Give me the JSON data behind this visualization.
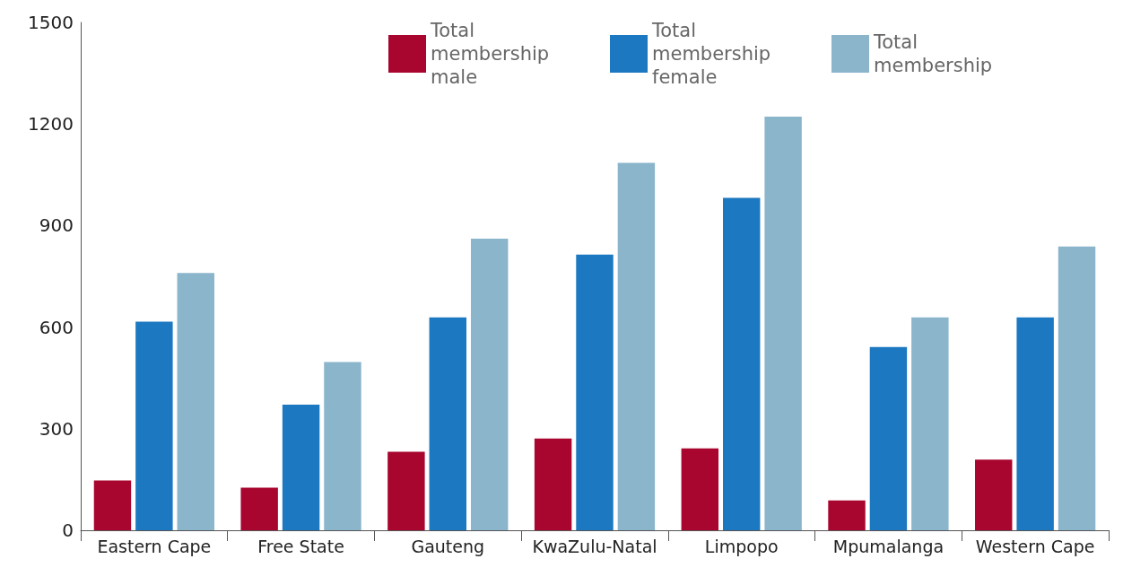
{
  "chart_data": {
    "type": "bar",
    "categories": [
      "Eastern Cape",
      "Free State",
      "Gauteng",
      "KwaZulu-Natal",
      "Limpopo",
      "Mpumalanga",
      "Western Cape"
    ],
    "series": [
      {
        "name": "Total membership male",
        "color": "#a8062f",
        "values": [
          147,
          126,
          232,
          271,
          242,
          88,
          209
        ]
      },
      {
        "name": "Total membership female",
        "color": "#1c78c0",
        "values": [
          616,
          371,
          629,
          814,
          982,
          541,
          629
        ]
      },
      {
        "name": "Total membership",
        "color": "#8ab5cb",
        "values": [
          760,
          497,
          861,
          1085,
          1222,
          629,
          838
        ]
      }
    ],
    "ylim": [
      0,
      1500
    ],
    "yticks": [
      0,
      300,
      600,
      900,
      1200,
      1500
    ],
    "grid": false,
    "legend": "top"
  }
}
